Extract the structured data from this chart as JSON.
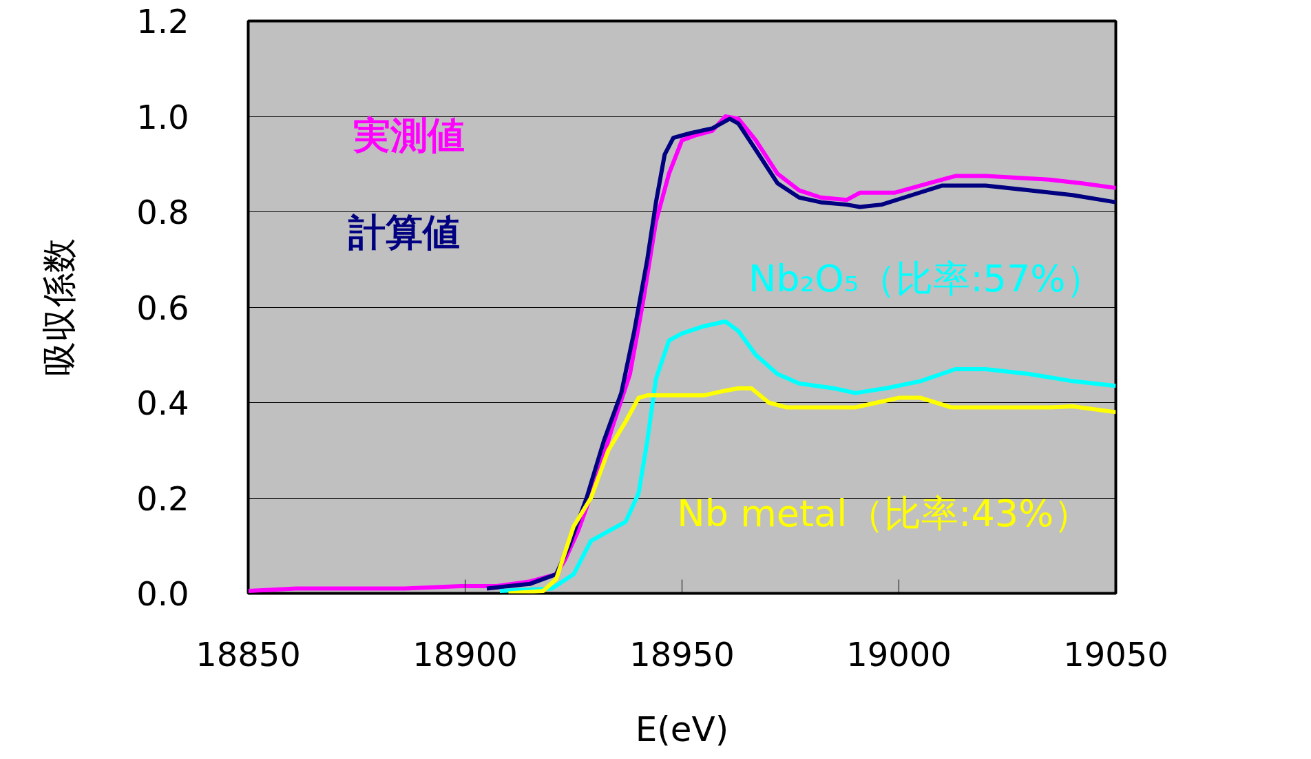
{
  "chart_data": {
    "type": "line",
    "xlabel": "E(eV)",
    "ylabel": "吸収係数",
    "xlim": [
      18850,
      19050
    ],
    "xticks": [
      18850,
      18900,
      18950,
      19000,
      19050
    ],
    "ylim": [
      0,
      1.2
    ],
    "yticks": [
      {
        "value": 0,
        "label": "0.0"
      },
      {
        "value": 0.2,
        "label": "0.2"
      },
      {
        "value": 0.4,
        "label": "0.4"
      },
      {
        "value": 0.6,
        "label": "0.6"
      },
      {
        "value": 0.8,
        "label": "0.8"
      },
      {
        "value": 1.0,
        "label": "1.0"
      },
      {
        "value": 1.2,
        "label": "1.2"
      }
    ],
    "grid": "y",
    "legend": false,
    "marker": "none",
    "line_style": "solid",
    "series": [
      {
        "name": "実測値",
        "color": "#ff00ff",
        "x": [
          18850,
          18861,
          18886,
          18899,
          18907,
          18915,
          18921,
          18923,
          18926,
          18930,
          18934,
          18938,
          18941,
          18944,
          18947,
          18950,
          18953,
          18957,
          18960,
          18963,
          18967,
          18972,
          18977,
          18982,
          18988,
          18991,
          18999,
          19007,
          19013,
          19020,
          19034,
          19042,
          19050
        ],
        "values": [
          0.005,
          0.01,
          0.01,
          0.015,
          0.015,
          0.025,
          0.04,
          0.07,
          0.13,
          0.23,
          0.35,
          0.46,
          0.61,
          0.78,
          0.88,
          0.95,
          0.96,
          0.97,
          1.0,
          0.995,
          0.95,
          0.88,
          0.845,
          0.83,
          0.825,
          0.84,
          0.84,
          0.86,
          0.875,
          0.875,
          0.868,
          0.86,
          0.85
        ]
      },
      {
        "name": "計算値",
        "color": "#000080",
        "x": [
          18905,
          18915,
          18921,
          18924,
          18928,
          18932,
          18936,
          18939,
          18942,
          18944,
          18946,
          18948,
          18952,
          18957,
          18961,
          18963,
          18967,
          18972,
          18977,
          18982,
          18988,
          18991,
          18996,
          19003,
          19010,
          19020,
          19030,
          19040,
          19050
        ],
        "values": [
          0.01,
          0.02,
          0.04,
          0.1,
          0.2,
          0.32,
          0.42,
          0.55,
          0.7,
          0.82,
          0.92,
          0.955,
          0.965,
          0.975,
          0.995,
          0.985,
          0.93,
          0.86,
          0.83,
          0.82,
          0.815,
          0.81,
          0.815,
          0.835,
          0.855,
          0.855,
          0.845,
          0.835,
          0.82
        ]
      },
      {
        "name": "Nb₂O₅（比率:57%）",
        "color": "#00ffff",
        "x": [
          18908,
          18920,
          18925,
          18929,
          18933,
          18937,
          18940,
          18942,
          18944,
          18947,
          18950,
          18955,
          18960,
          18963,
          18967,
          18972,
          18977,
          18985,
          18990,
          18997,
          19005,
          19013,
          19020,
          19030,
          19040,
          19050
        ],
        "values": [
          0.005,
          0.01,
          0.04,
          0.11,
          0.13,
          0.15,
          0.21,
          0.32,
          0.45,
          0.53,
          0.545,
          0.56,
          0.57,
          0.55,
          0.5,
          0.46,
          0.44,
          0.43,
          0.42,
          0.43,
          0.445,
          0.47,
          0.47,
          0.46,
          0.445,
          0.435
        ]
      },
      {
        "name": "Nb  metal（比率:43%）",
        "color": "#ffff00",
        "x": [
          18910,
          18918,
          18921,
          18925,
          18929,
          18933,
          18937,
          18940,
          18942,
          18955,
          18960,
          18963,
          18966,
          18970,
          18974,
          18990,
          18995,
          19000,
          19005,
          19012,
          19035,
          19040,
          19050
        ],
        "values": [
          0.0,
          0.005,
          0.03,
          0.14,
          0.2,
          0.3,
          0.36,
          0.41,
          0.415,
          0.415,
          0.425,
          0.43,
          0.43,
          0.4,
          0.39,
          0.39,
          0.4,
          0.41,
          0.41,
          0.39,
          0.39,
          0.392,
          0.38
        ]
      }
    ]
  }
}
